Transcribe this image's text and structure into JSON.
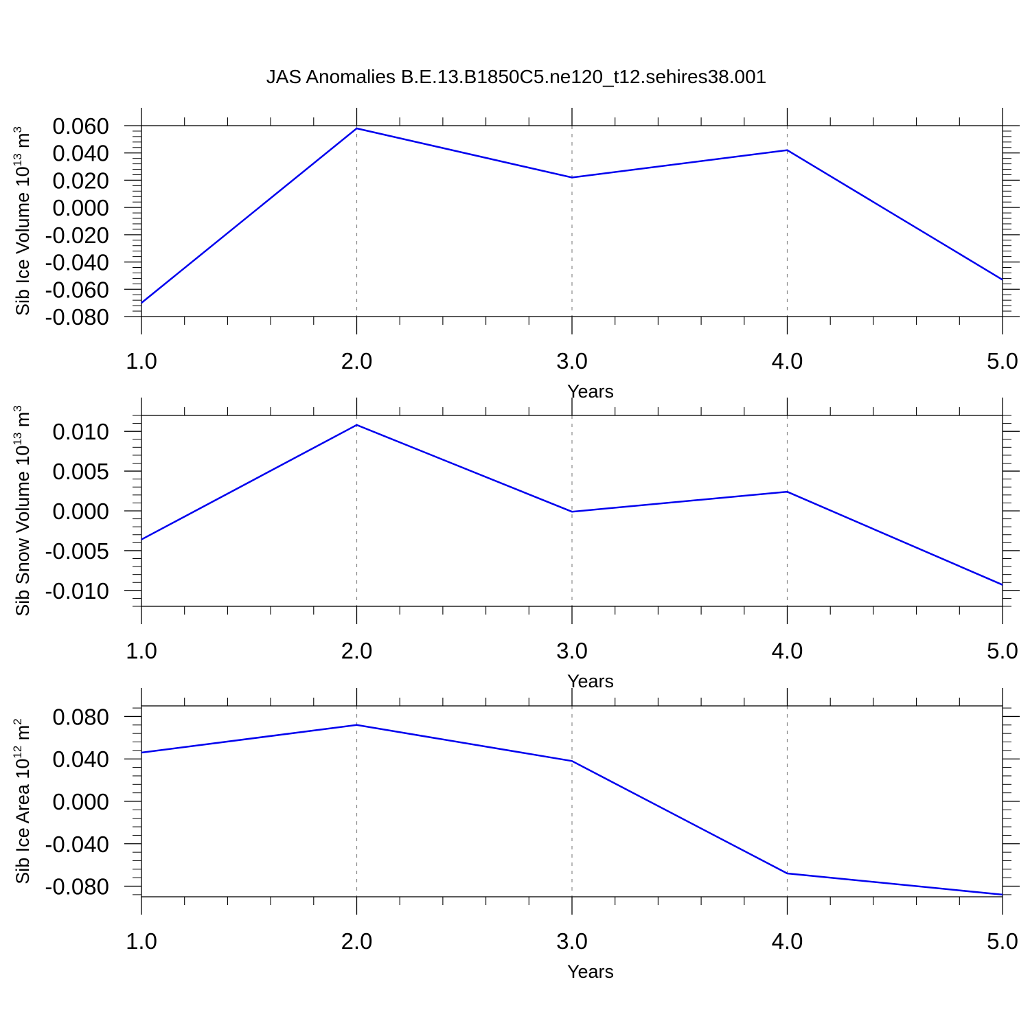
{
  "title": "JAS Anomalies B.E.13.B1850C5.ne120_t12.sehires38.001",
  "line_color": "#0000ee",
  "chart_data": [
    {
      "type": "line",
      "x": [
        1.0,
        2.0,
        3.0,
        4.0,
        5.0
      ],
      "series": [
        {
          "values": [
            -0.07,
            0.058,
            0.022,
            0.042,
            -0.053
          ]
        }
      ],
      "xlabel": "Years",
      "ylabel": {
        "pre": "Sib Ice Volume 10",
        "sup": "13",
        "mid": " m",
        "sup2": "3"
      },
      "xlim": [
        1.0,
        5.0
      ],
      "ylim": [
        -0.08,
        0.06
      ],
      "x_ticks": [
        "1.0",
        "2.0",
        "3.0",
        "4.0",
        "5.0"
      ],
      "y_ticks": [
        "0.060",
        "0.040",
        "0.020",
        "0.000",
        "-0.020",
        "-0.040",
        "-0.060",
        "-0.080"
      ],
      "grid": "x dashed"
    },
    {
      "type": "line",
      "x": [
        1.0,
        2.0,
        3.0,
        4.0,
        5.0
      ],
      "series": [
        {
          "values": [
            -0.0036,
            0.0108,
            -0.0001,
            0.0024,
            -0.0093
          ]
        }
      ],
      "xlabel": "Years",
      "ylabel": {
        "pre": "Sib Snow Volume 10",
        "sup": "13",
        "mid": " m",
        "sup2": "3"
      },
      "xlim": [
        1.0,
        5.0
      ],
      "ylim": [
        -0.012,
        0.012
      ],
      "x_ticks": [
        "1.0",
        "2.0",
        "3.0",
        "4.0",
        "5.0"
      ],
      "y_ticks": [
        "0.010",
        "0.005",
        "0.000",
        "-0.005",
        "-0.010"
      ],
      "grid": "x dashed"
    },
    {
      "type": "line",
      "x": [
        1.0,
        2.0,
        3.0,
        4.0,
        5.0
      ],
      "series": [
        {
          "values": [
            0.046,
            0.072,
            0.038,
            -0.068,
            -0.088
          ]
        }
      ],
      "xlabel": "Years",
      "ylabel": {
        "pre": "Sib Ice Area 10",
        "sup": "12",
        "mid": " m",
        "sup2": "2"
      },
      "xlim": [
        1.0,
        5.0
      ],
      "ylim": [
        -0.09,
        0.09
      ],
      "x_ticks": [
        "1.0",
        "2.0",
        "3.0",
        "4.0",
        "5.0"
      ],
      "y_ticks": [
        "0.080",
        "0.040",
        "0.000",
        "-0.040",
        "-0.080"
      ],
      "grid": "x dashed"
    }
  ]
}
